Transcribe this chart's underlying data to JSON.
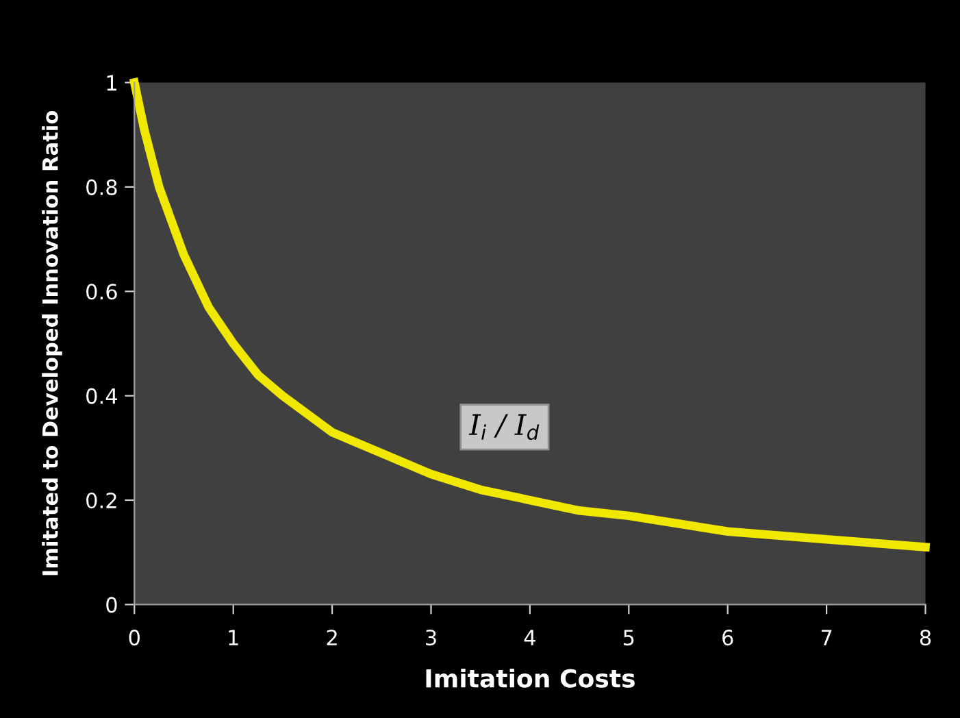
{
  "chart_data": {
    "type": "line",
    "xlabel": "Imitation Costs",
    "ylabel": "Imitated to Developed Innovation Ratio",
    "x": [
      0,
      0.1,
      0.25,
      0.5,
      0.75,
      1,
      1.25,
      1.5,
      2,
      2.5,
      3,
      3.5,
      4,
      4.5,
      5,
      6,
      7,
      8
    ],
    "series": [
      {
        "color": "#f0e800",
        "values": [
          1.0,
          0.91,
          0.8,
          0.67,
          0.57,
          0.5,
          0.44,
          0.4,
          0.33,
          0.29,
          0.25,
          0.22,
          0.2,
          0.18,
          0.17,
          0.14,
          0.125,
          0.11
        ]
      }
    ],
    "xlim": [
      0,
      8
    ],
    "xticks": [
      0,
      1,
      2,
      3,
      4,
      5,
      6,
      7,
      8
    ],
    "ylim": [
      0,
      1
    ],
    "yticks": [
      0,
      0.2,
      0.4,
      0.6,
      0.8,
      1
    ],
    "grid": false,
    "legend": false,
    "marker": "none",
    "line_style": "solid",
    "annotations": [
      "I$_{i}$ / I$_{d}$"
    ]
  }
}
